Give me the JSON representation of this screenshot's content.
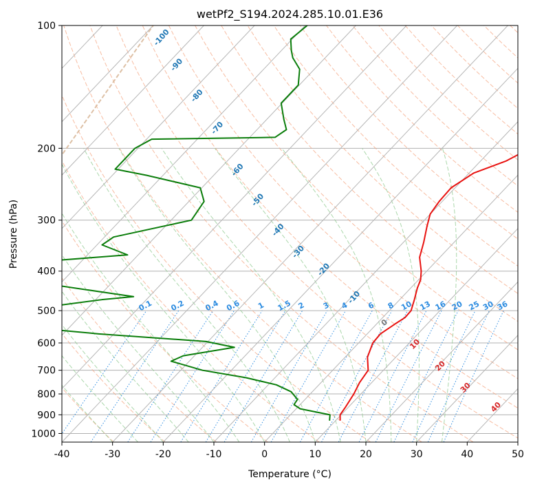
{
  "chart_data": {
    "type": "line",
    "title": "wetPf2_S194.2024.285.10.01.E36",
    "xlabel": "Temperature (°C)",
    "ylabel": "Pressure (hPa)",
    "xlim": [
      -40,
      50
    ],
    "ylim": [
      1050,
      100
    ],
    "y_scale": "log",
    "grid": true,
    "skew": "skew-T log-p",
    "x_ticks": [
      -40,
      -30,
      -20,
      -10,
      0,
      10,
      20,
      30,
      40,
      50
    ],
    "y_ticks": [
      100,
      200,
      300,
      400,
      500,
      600,
      700,
      800,
      900,
      1000
    ],
    "colors": {
      "temperature": "#e8110f",
      "dewpoint": "#0a7d0a",
      "isotherms": "#b5b5b5",
      "dry_adiabats": "#f4a582",
      "moist_adiabats": "#8fca8f",
      "mixing_ratio": "#2b8be0",
      "hpa_gridlines": "#b0b0b0",
      "cirrus_line": "#d9b99b",
      "dry_adiabat_labels": "#d62728",
      "moist_adiabat_labels": "#1f77b4",
      "mixing_ratio_labels": "#2b8be0"
    },
    "series": [
      {
        "key": "temperature",
        "points": [
          [
            10.9,
            930
          ],
          [
            9.8,
            900
          ],
          [
            9.4,
            860
          ],
          [
            8.6,
            800
          ],
          [
            7.6,
            750
          ],
          [
            7.0,
            700
          ],
          [
            4.4,
            650
          ],
          [
            2.8,
            600
          ],
          [
            2.6,
            570
          ],
          [
            3.6,
            540
          ],
          [
            4.4,
            520
          ],
          [
            4.3,
            500
          ],
          [
            2.9,
            470
          ],
          [
            1.3,
            440
          ],
          [
            0.4,
            420
          ],
          [
            -1.1,
            400
          ],
          [
            -4.0,
            370
          ],
          [
            -6.0,
            340
          ],
          [
            -8.4,
            310
          ],
          [
            -10.0,
            290
          ],
          [
            -10.6,
            270
          ],
          [
            -10.8,
            250
          ],
          [
            -9.1,
            230
          ],
          [
            -5.0,
            215
          ],
          [
            -2.6,
            200
          ],
          [
            -5.1,
            180
          ],
          [
            -7.6,
            165
          ],
          [
            -8.6,
            160
          ],
          [
            -9.1,
            150
          ],
          [
            -8.2,
            140
          ],
          [
            -6.8,
            130
          ],
          [
            -7.5,
            120
          ],
          [
            -8.5,
            110
          ],
          [
            -10.3,
            100
          ]
        ]
      },
      {
        "key": "dewpoint",
        "points": [
          [
            8.8,
            930
          ],
          [
            7.8,
            900
          ],
          [
            0.8,
            870
          ],
          [
            -1.2,
            850
          ],
          [
            -1.5,
            825
          ],
          [
            -4.2,
            790
          ],
          [
            -8.4,
            760
          ],
          [
            -15.7,
            730
          ],
          [
            -25.7,
            700
          ],
          [
            -33.6,
            665
          ],
          [
            -32.2,
            645
          ],
          [
            -23.7,
            615
          ],
          [
            -30.4,
            595
          ],
          [
            -53.0,
            570
          ],
          [
            -75.4,
            540
          ],
          [
            -73.3,
            500
          ],
          [
            -58.8,
            470
          ],
          [
            -53.1,
            462
          ],
          [
            -72.6,
            430
          ],
          [
            -78.5,
            410
          ],
          [
            -79.0,
            380
          ],
          [
            -62.1,
            365
          ],
          [
            -69.0,
            345
          ],
          [
            -68.2,
            330
          ],
          [
            -56.0,
            300
          ],
          [
            -57.0,
            270
          ],
          [
            -60.3,
            250
          ],
          [
            -73.2,
            233
          ],
          [
            -80.6,
            225
          ],
          [
            -80.6,
            200
          ],
          [
            -79.0,
            190
          ],
          [
            -55.0,
            188
          ],
          [
            -54.2,
            180
          ],
          [
            -56.6,
            170
          ],
          [
            -60.2,
            155
          ],
          [
            -60.2,
            140
          ],
          [
            -62.9,
            128
          ],
          [
            -66.4,
            120
          ],
          [
            -68.1,
            115
          ],
          [
            -70.3,
            108
          ],
          [
            -69.6,
            100
          ]
        ]
      }
    ],
    "reference_lines": {
      "isotherms": [
        -200,
        -190,
        -180,
        -170,
        -160,
        -150,
        -140,
        -130,
        -120,
        -110,
        -100,
        -90,
        -80,
        -70,
        -60,
        -50,
        -40,
        -30,
        -20,
        -10,
        0,
        10,
        20,
        30,
        40,
        50
      ],
      "dry_adiabats_theta_k": [
        230,
        240,
        250,
        260,
        270,
        280,
        290,
        300,
        310,
        320,
        330,
        340,
        350,
        360,
        370,
        380,
        390,
        400,
        410,
        420,
        430,
        440,
        450,
        460,
        470,
        480
      ],
      "moist_adiabats_temp_c": [
        -30,
        -25,
        -20,
        -15,
        -10,
        -5,
        0,
        5,
        10,
        15,
        20,
        25,
        30,
        35
      ],
      "mixing_ratios": [
        0.1,
        0.2,
        0.4,
        0.6,
        1,
        1.5,
        2,
        3,
        4,
        6,
        8,
        10,
        13,
        16,
        20,
        25,
        30,
        36
      ]
    },
    "annotations": {
      "mixing_ratio_labels": [
        "0.1",
        "0.2",
        "0.4",
        "0.6",
        "1",
        "1.5",
        "2",
        "3",
        "4",
        "6",
        "8",
        "10",
        "13",
        "16",
        "20",
        "25",
        "30",
        "36"
      ],
      "dry_adiabat_labels": [
        "0",
        "10",
        "20",
        "30",
        "40"
      ],
      "moist_adiabat_labels": [
        "-100",
        "-90",
        "-80",
        "-70",
        "-60",
        "-50",
        "-40",
        "-30",
        "-20",
        "-10"
      ]
    }
  }
}
